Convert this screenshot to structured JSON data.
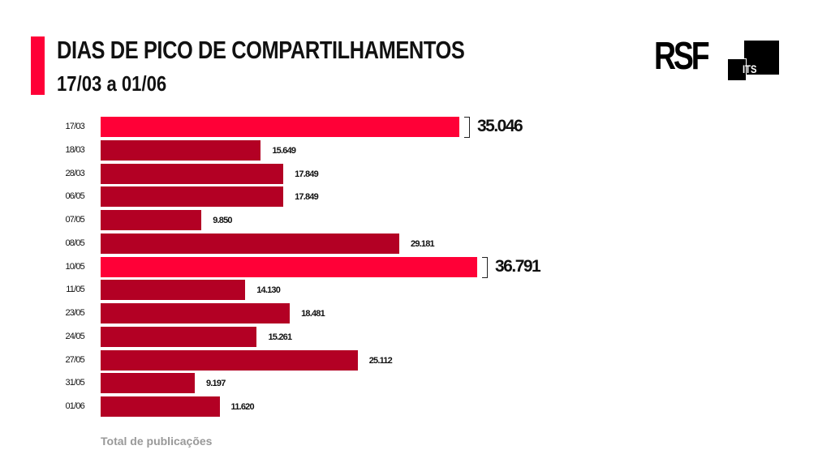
{
  "header": {
    "title": "DIAS DE PICO DE COMPARTILHAMENTOS",
    "subtitle": "17/03 a 01/06"
  },
  "logos": {
    "rsf": "RSF",
    "its": "ITS"
  },
  "colors": {
    "highlight": "#ff0037",
    "normal": "#b30024"
  },
  "chart_data": {
    "type": "bar",
    "orientation": "horizontal",
    "title": "DIAS DE PICO DE COMPARTILHAMENTOS",
    "subtitle": "17/03 a 01/06",
    "xlabel": "Total de publicações",
    "ylabel": "",
    "xlim": [
      0,
      36791
    ],
    "grid": false,
    "categories": [
      "17/03",
      "18/03",
      "28/03",
      "06/05",
      "07/05",
      "08/05",
      "10/05",
      "11/05",
      "23/05",
      "24/05",
      "27/05",
      "31/05",
      "01/06"
    ],
    "values": [
      35046,
      15649,
      17849,
      17849,
      9850,
      29181,
      36791,
      14130,
      18481,
      15261,
      25112,
      9197,
      11620
    ],
    "value_labels": [
      "35.046",
      "15.649",
      "17.849",
      "17.849",
      "9.850",
      "29.181",
      "36.791",
      "14.130",
      "18.481",
      "15.261",
      "25.112",
      "9.197",
      "11.620"
    ],
    "highlighted": [
      true,
      false,
      false,
      false,
      false,
      false,
      true,
      false,
      false,
      false,
      false,
      false,
      false
    ]
  }
}
